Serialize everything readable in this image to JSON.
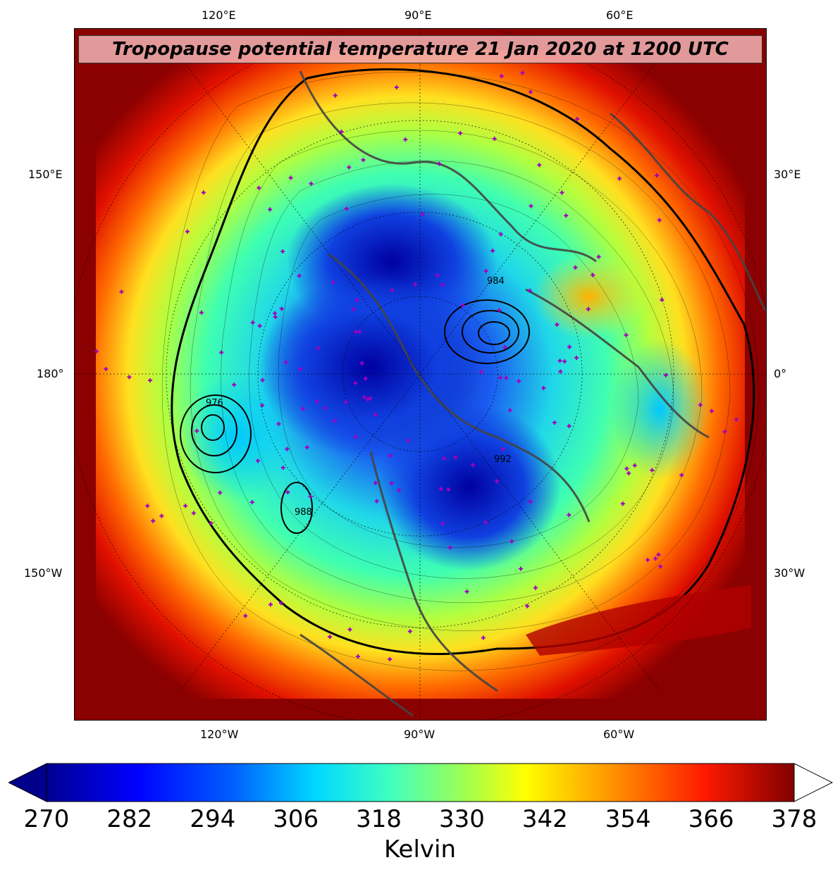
{
  "map": {
    "title": "Tropopause potential temperature 21 Jan 2020 at 1200 UTC",
    "projection": "north-polar-stereographic",
    "field": "tropopause potential temperature",
    "overlay": "sea-level pressure contours (hPa) and observation markers",
    "labels": {
      "top": [
        "120°E",
        "90°E",
        "60°E"
      ],
      "bottom": [
        "120°W",
        "90°W",
        "60°W"
      ],
      "left": [
        "150°E",
        "180°",
        "150°W"
      ],
      "right": [
        "30°E",
        "0°",
        "30°W"
      ]
    },
    "pressure_contour_labels": [
      "984",
      "976",
      "988",
      "992"
    ],
    "colors": {
      "cold": "#00008b",
      "mid": "#40ffb0",
      "warm": "#8b0000",
      "coastline": "#444444",
      "observation": "#a000c0"
    }
  },
  "colorbar": {
    "min": 270,
    "max": 378,
    "tick_labels": [
      "270",
      "282",
      "294",
      "306",
      "318",
      "330",
      "342",
      "354",
      "366",
      "378"
    ],
    "label": "Kelvin",
    "extend": "both"
  }
}
